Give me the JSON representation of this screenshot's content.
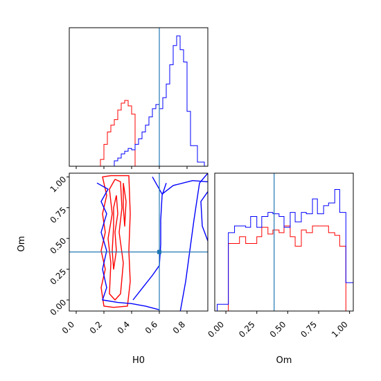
{
  "chart_data": {
    "type": "corner",
    "truth": {
      "H0": 0.6,
      "Om": 0.39,
      "color": "#1f77b4"
    },
    "colors": {
      "red": "#ff0000",
      "blue": "#0000ff",
      "truth": "#1f77b4"
    },
    "panels": [
      {
        "id": "hist-H0",
        "type": "histogram",
        "xlim": [
          -0.05,
          0.95
        ],
        "bins": [
          0.1,
          0.125,
          0.15,
          0.175,
          0.2,
          0.225,
          0.25,
          0.275,
          0.3,
          0.325,
          0.35,
          0.375,
          0.4,
          0.425,
          0.45,
          0.475,
          0.5,
          0.525,
          0.55,
          0.575,
          0.6,
          0.625,
          0.65,
          0.675,
          0.7,
          0.725,
          0.75,
          0.775,
          0.8,
          0.825,
          0.85,
          0.875,
          0.9,
          0.925,
          0.95
        ],
        "series": [
          {
            "name": "",
            "color": "#ff0000",
            "values": [
              0,
              0,
              0,
              0.05,
              0.16,
              0.25,
              0.3,
              0.34,
              0.41,
              0.46,
              0.48,
              0.44,
              0.38,
              0,
              0,
              0,
              0,
              0,
              0,
              0,
              0,
              0,
              0,
              0,
              0,
              0,
              0,
              0,
              0,
              0,
              0,
              0,
              0,
              0
            ]
          },
          {
            "name": "",
            "color": "#0000ff",
            "values": [
              0,
              0,
              0,
              0,
              0,
              0,
              0,
              0.04,
              0.06,
              0.09,
              0.11,
              0.13,
              0.12,
              0.16,
              0.2,
              0.25,
              0.3,
              0.36,
              0.42,
              0.45,
              0.42,
              0.5,
              0.6,
              0.74,
              0.88,
              0.95,
              0.85,
              0.76,
              0.4,
              0.15,
              0.15,
              0.03,
              0.03,
              0
            ]
          }
        ]
      },
      {
        "id": "contour-H0-Om",
        "type": "contour",
        "xlabel": "H0",
        "ylabel": "Om",
        "xlim": [
          -0.05,
          0.95
        ],
        "ylim": [
          -0.09,
          1.03
        ],
        "xticks": [
          "0.0",
          "0.2",
          "0.4",
          "0.6",
          "0.8"
        ],
        "yticks": [
          "0.00",
          "0.25",
          "0.50",
          "0.75",
          "1.00"
        ],
        "series": [
          {
            "name": "",
            "color": "#ff0000",
            "contours": [
              [
                [
                  0.25,
                  1.01
                ],
                [
                  0.38,
                  1.01
                ],
                [
                  0.39,
                  0.7
                ],
                [
                  0.38,
                  0.4
                ],
                [
                  0.39,
                  0.15
                ],
                [
                  0.37,
                  -0.05
                ],
                [
                  0.27,
                  -0.06
                ],
                [
                  0.2,
                  -0.05
                ],
                [
                  0.18,
                  0.1
                ],
                [
                  0.21,
                  0.25
                ],
                [
                  0.18,
                  0.4
                ],
                [
                  0.21,
                  0.55
                ],
                [
                  0.19,
                  0.7
                ],
                [
                  0.22,
                  0.85
                ],
                [
                  0.19,
                  1.0
                ],
                [
                  0.25,
                  1.01
                ]
              ],
              [
                [
                  0.28,
                  0.98
                ],
                [
                  0.32,
                  0.96
                ],
                [
                  0.33,
                  0.75
                ],
                [
                  0.31,
                  0.55
                ],
                [
                  0.34,
                  0.3
                ],
                [
                  0.32,
                  0.05
                ],
                [
                  0.28,
                  0.0
                ],
                [
                  0.24,
                  0.05
                ],
                [
                  0.25,
                  0.3
                ],
                [
                  0.23,
                  0.5
                ],
                [
                  0.26,
                  0.7
                ],
                [
                  0.24,
                  0.9
                ],
                [
                  0.28,
                  0.98
                ]
              ],
              [
                [
                  0.29,
                  0.85
                ],
                [
                  0.3,
                  0.7
                ],
                [
                  0.28,
                  0.55
                ],
                [
                  0.29,
                  0.4
                ],
                [
                  0.27,
                  0.25
                ],
                [
                  0.26,
                  0.4
                ],
                [
                  0.27,
                  0.6
                ],
                [
                  0.27,
                  0.75
                ],
                [
                  0.29,
                  0.85
                ]
              ],
              [
                [
                  0.34,
                  0.95
                ],
                [
                  0.36,
                  0.8
                ],
                [
                  0.35,
                  0.6
                ],
                [
                  0.34,
                  0.75
                ],
                [
                  0.34,
                  0.95
                ]
              ]
            ]
          },
          {
            "name": "",
            "color": "#0000ff",
            "contours": [
              [
                [
                  0.55,
                  1.0
                ],
                [
                  0.62,
                  0.86
                ],
                [
                  0.7,
                  0.93
                ],
                [
                  0.84,
                  0.97
                ],
                [
                  0.95,
                  0.96
                ]
              ],
              [
                [
                  0.95,
                  1.03
                ],
                [
                  0.89,
                  0.95
                ],
                [
                  0.85,
                  0.65
                ],
                [
                  0.82,
                  0.4
                ],
                [
                  0.79,
                  0.15
                ],
                [
                  0.75,
                  -0.1
                ]
              ],
              [
                [
                  0.15,
                  0.95
                ],
                [
                  0.23,
                  0.9
                ],
                [
                  0.18,
                  0.8
                ],
                [
                  0.22,
                  0.7
                ],
                [
                  0.18,
                  0.55
                ],
                [
                  0.22,
                  0.4
                ],
                [
                  0.19,
                  0.25
                ],
                [
                  0.22,
                  0.1
                ],
                [
                  0.19,
                  0.0
                ],
                [
                  0.3,
                  -0.02
                ],
                [
                  0.4,
                  -0.03
                ],
                [
                  0.5,
                  -0.05
                ],
                [
                  0.6,
                  -0.08
                ]
              ],
              [
                [
                  0.41,
                  0.0
                ],
                [
                  0.48,
                  0.1
                ],
                [
                  0.55,
                  0.2
                ],
                [
                  0.6,
                  0.28
                ],
                [
                  0.61,
                  0.45
                ],
                [
                  0.61,
                  0.65
                ],
                [
                  0.62,
                  0.85
                ],
                [
                  0.65,
                  0.95
                ]
              ],
              [
                [
                  0.95,
                  0.48
                ],
                [
                  0.91,
                  0.6
                ],
                [
                  0.9,
                  0.8
                ],
                [
                  0.95,
                  0.88
                ]
              ]
            ]
          }
        ]
      },
      {
        "id": "hist-Om",
        "type": "histogram",
        "xlim": [
          -0.09,
          1.03
        ],
        "xlabel": "Om",
        "xticks": [
          "0.00",
          "0.25",
          "0.50",
          "0.75",
          "1.00"
        ],
        "bins": [
          -0.07,
          -0.02,
          0.02,
          0.07,
          0.11,
          0.16,
          0.2,
          0.25,
          0.29,
          0.34,
          0.38,
          0.43,
          0.47,
          0.52,
          0.56,
          0.61,
          0.65,
          0.7,
          0.74,
          0.79,
          0.83,
          0.88,
          0.92,
          0.97,
          1.01,
          1.03
        ],
        "series": [
          {
            "name": "",
            "color": "#ff0000",
            "values": [
              0,
              0,
              0.5,
              0.5,
              0.55,
              0.5,
              0.5,
              0.55,
              0.62,
              0.57,
              0.6,
              0.58,
              0.63,
              0.55,
              0.48,
              0.6,
              0.58,
              0.63,
              0.63,
              0.63,
              0.58,
              0.56,
              0.48,
              0,
              0
            ]
          },
          {
            "name": "",
            "color": "#0000ff",
            "values": [
              0.05,
              0.05,
              0.58,
              0.63,
              0.63,
              0.62,
              0.7,
              0.62,
              0.7,
              0.73,
              0.72,
              0.7,
              0.62,
              0.73,
              0.66,
              0.73,
              0.72,
              0.83,
              0.72,
              0.78,
              0.8,
              0.9,
              0.73,
              0.21,
              0.21
            ]
          }
        ]
      }
    ]
  }
}
